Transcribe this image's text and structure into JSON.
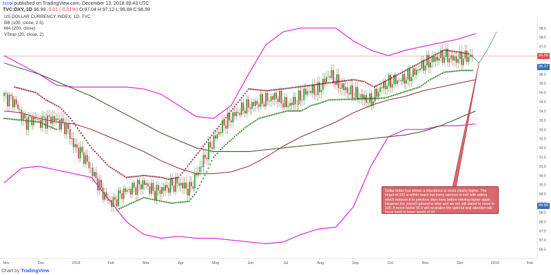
{
  "header": {
    "author": "fxcoi",
    "published_text": "published on TradingView.com, December 13, 2018 09:43 UTC",
    "symbol": "TVC:DXY, 1D",
    "last": "96.99",
    "change": "-0.01 (-0.01%)",
    "ohlc": "O:97.04 H:97.12 L:96.88 C:96.99"
  },
  "legend": {
    "title": "US DOLLAR CURRENCY INDEX, 1D, TVC",
    "bb": "BB (100, close, 2.5)",
    "ma": "MA (200, close)",
    "stop": "VStop (20, close, 2)"
  },
  "annotation": {
    "text": "Dollar Index has shown a reluctance to move clearly higher. The target of 100 is within reach but every upmove is met with selling which retraces it to previous days lows before moving higher again. However the overall uptrend is alive and we are still slated to move to 100. A move below 95.5 will neutralize the uptrend and attention will focus back to lower levels of 94"
  },
  "footer": {
    "chart_by": "Chart by",
    "brand": "TradingView"
  },
  "colors": {
    "bull": "#2e9e2e",
    "bear": "#c4464c",
    "bb": "#e020e0",
    "ma": "#2e4a1f",
    "basis": "#8b2a2a",
    "vstop_bull": "#1f7a1f",
    "vstop_bear": "#8b1a2a",
    "current_price_line": "#e05050",
    "axis_box_current": "#e05050",
    "axis_box_blue": "#3b6db7"
  },
  "price_boxes": {
    "current": "96.99",
    "blue1": "96.37",
    "blue2": "88.86"
  },
  "chart_data": {
    "type": "candlestick",
    "title": "US DOLLAR CURRENCY INDEX, 1D, TVC",
    "ylim": [
      86.0,
      99.2
    ],
    "y_ticks": [
      86.5,
      87.0,
      87.5,
      88.0,
      88.5,
      89.0,
      89.5,
      90.0,
      90.5,
      91.0,
      91.5,
      92.0,
      92.5,
      93.0,
      93.5,
      94.0,
      94.5,
      95.0,
      95.5,
      96.0,
      96.5,
      97.0,
      97.5,
      98.0,
      98.5
    ],
    "x_labels": [
      "Nov",
      "Dec",
      "2018",
      "Feb",
      "Mar",
      "Apr",
      "May",
      "Jun",
      "Jul",
      "Aug",
      "Sep",
      "Oct",
      "Nov",
      "Dec",
      "2019",
      "Feb"
    ],
    "x_label_months": [
      0,
      1,
      2,
      3,
      4,
      5,
      6,
      7,
      8,
      9,
      10,
      11,
      12,
      13,
      14,
      15
    ],
    "close_path": [
      [
        0.0,
        94.8
      ],
      [
        0.3,
        94.5
      ],
      [
        0.6,
        93.4
      ],
      [
        0.9,
        93.6
      ],
      [
        1.0,
        93.4
      ],
      [
        1.4,
        93.6
      ],
      [
        1.8,
        93.1
      ],
      [
        2.0,
        92.1
      ],
      [
        2.3,
        91.5
      ],
      [
        2.6,
        90.4
      ],
      [
        2.9,
        89.3
      ],
      [
        3.1,
        89.0
      ],
      [
        3.4,
        89.6
      ],
      [
        3.7,
        89.8
      ],
      [
        4.0,
        90.1
      ],
      [
        4.3,
        89.6
      ],
      [
        4.6,
        89.8
      ],
      [
        5.0,
        90.1
      ],
      [
        5.3,
        89.7
      ],
      [
        5.5,
        90.5
      ],
      [
        5.8,
        91.7
      ],
      [
        6.0,
        92.4
      ],
      [
        6.3,
        93.3
      ],
      [
        6.6,
        93.8
      ],
      [
        6.9,
        94.2
      ],
      [
        7.2,
        94.4
      ],
      [
        7.5,
        94.6
      ],
      [
        7.8,
        94.8
      ],
      [
        8.1,
        94.3
      ],
      [
        8.4,
        94.6
      ],
      [
        8.7,
        95.1
      ],
      [
        9.0,
        95.1
      ],
      [
        9.3,
        96.0
      ],
      [
        9.6,
        95.4
      ],
      [
        9.9,
        95.0
      ],
      [
        10.2,
        94.8
      ],
      [
        10.5,
        94.5
      ],
      [
        10.8,
        95.3
      ],
      [
        11.1,
        95.6
      ],
      [
        11.4,
        95.7
      ],
      [
        11.7,
        96.0
      ],
      [
        12.0,
        96.5
      ],
      [
        12.3,
        96.8
      ],
      [
        12.6,
        97.0
      ],
      [
        12.9,
        96.8
      ],
      [
        13.2,
        96.9
      ],
      [
        13.4,
        96.99
      ]
    ],
    "bb_upper": [
      [
        0.0,
        97.0
      ],
      [
        0.5,
        96.5
      ],
      [
        1.0,
        96.0
      ],
      [
        1.5,
        95.4
      ],
      [
        2.0,
        95.3
      ],
      [
        2.5,
        95.3
      ],
      [
        3.0,
        95.3
      ],
      [
        3.5,
        95.3
      ],
      [
        4.0,
        95.2
      ],
      [
        4.5,
        94.9
      ],
      [
        5.0,
        94.3
      ],
      [
        5.5,
        93.7
      ],
      [
        6.0,
        93.6
      ],
      [
        6.5,
        94.3
      ],
      [
        7.0,
        96.0
      ],
      [
        7.5,
        97.6
      ],
      [
        8.0,
        98.3
      ],
      [
        8.5,
        98.5
      ],
      [
        9.0,
        98.5
      ],
      [
        9.5,
        98.5
      ],
      [
        10.0,
        97.8
      ],
      [
        10.5,
        97.3
      ],
      [
        11.0,
        97.0
      ],
      [
        11.5,
        97.3
      ],
      [
        12.0,
        97.5
      ],
      [
        12.5,
        97.7
      ],
      [
        13.0,
        97.9
      ],
      [
        13.5,
        98.2
      ]
    ],
    "bb_lower": [
      [
        0.0,
        90.1
      ],
      [
        0.5,
        90.9
      ],
      [
        1.0,
        91.0
      ],
      [
        1.5,
        90.8
      ],
      [
        2.0,
        90.6
      ],
      [
        2.5,
        90.4
      ],
      [
        3.0,
        89.2
      ],
      [
        3.5,
        88.0
      ],
      [
        4.0,
        87.3
      ],
      [
        4.5,
        87.1
      ],
      [
        5.0,
        87.2
      ],
      [
        5.5,
        87.1
      ],
      [
        6.0,
        87.1
      ],
      [
        6.5,
        87.0
      ],
      [
        7.0,
        86.9
      ],
      [
        7.5,
        86.8
      ],
      [
        8.0,
        86.9
      ],
      [
        8.5,
        87.3
      ],
      [
        9.0,
        87.6
      ],
      [
        9.5,
        87.7
      ],
      [
        10.0,
        88.8
      ],
      [
        10.5,
        91.0
      ],
      [
        11.0,
        92.6
      ],
      [
        11.5,
        93.0
      ],
      [
        12.0,
        93.0
      ],
      [
        12.5,
        93.2
      ],
      [
        13.0,
        93.2
      ],
      [
        13.5,
        93.3
      ]
    ],
    "bb_basis": [
      [
        0.0,
        94.0
      ],
      [
        0.5,
        93.9
      ],
      [
        1.0,
        93.6
      ],
      [
        1.5,
        93.4
      ],
      [
        2.0,
        93.3
      ],
      [
        2.5,
        93.0
      ],
      [
        3.0,
        92.6
      ],
      [
        3.5,
        92.2
      ],
      [
        4.0,
        91.8
      ],
      [
        4.5,
        91.3
      ],
      [
        5.0,
        90.9
      ],
      [
        5.5,
        90.6
      ],
      [
        6.0,
        90.6
      ],
      [
        6.5,
        90.7
      ],
      [
        7.0,
        91.0
      ],
      [
        7.5,
        91.5
      ],
      [
        8.0,
        92.1
      ],
      [
        8.5,
        92.6
      ],
      [
        9.0,
        93.0
      ],
      [
        9.5,
        93.4
      ],
      [
        10.0,
        93.9
      ],
      [
        10.5,
        94.3
      ],
      [
        11.0,
        94.6
      ],
      [
        11.5,
        94.8
      ],
      [
        12.0,
        95.1
      ],
      [
        12.5,
        95.3
      ],
      [
        13.0,
        95.5
      ],
      [
        13.5,
        95.7
      ]
    ],
    "ma200": [
      [
        0.0,
        96.6
      ],
      [
        0.5,
        96.3
      ],
      [
        1.0,
        96.0
      ],
      [
        1.5,
        95.6
      ],
      [
        2.0,
        95.2
      ],
      [
        2.5,
        94.8
      ],
      [
        3.0,
        94.3
      ],
      [
        3.5,
        93.8
      ],
      [
        4.0,
        93.3
      ],
      [
        4.5,
        92.8
      ],
      [
        5.0,
        92.4
      ],
      [
        5.5,
        92.0
      ],
      [
        6.0,
        91.8
      ],
      [
        6.5,
        91.8
      ],
      [
        7.0,
        91.8
      ],
      [
        7.5,
        91.9
      ],
      [
        8.0,
        92.0
      ],
      [
        8.5,
        92.1
      ],
      [
        9.0,
        92.2
      ],
      [
        9.5,
        92.3
      ],
      [
        10.0,
        92.4
      ],
      [
        10.5,
        92.5
      ],
      [
        11.0,
        92.6
      ],
      [
        11.5,
        92.7
      ],
      [
        12.0,
        92.9
      ],
      [
        12.5,
        93.2
      ],
      [
        13.0,
        93.6
      ],
      [
        13.5,
        94.0
      ]
    ],
    "vstop_bull": [
      [
        0.0,
        93.6
      ],
      [
        1.0,
        93.4
      ],
      [
        1.5,
        93.0
      ],
      [
        3.3,
        88.7
      ],
      [
        4.0,
        89.3
      ],
      [
        4.8,
        89.0
      ],
      [
        5.3,
        89.1
      ],
      [
        5.5,
        89.6
      ],
      [
        5.8,
        90.7
      ],
      [
        6.0,
        91.5
      ],
      [
        6.3,
        92.1
      ],
      [
        6.6,
        92.6
      ],
      [
        6.9,
        93.1
      ],
      [
        7.3,
        93.6
      ],
      [
        8.1,
        94.0
      ],
      [
        8.5,
        94.0
      ],
      [
        8.8,
        94.3
      ],
      [
        9.0,
        94.4
      ],
      [
        9.3,
        94.6
      ],
      [
        10.9,
        94.7
      ],
      [
        11.4,
        95.0
      ],
      [
        11.9,
        95.3
      ],
      [
        12.2,
        95.7
      ],
      [
        12.6,
        96.1
      ],
      [
        13.1,
        96.2
      ],
      [
        13.4,
        96.2
      ]
    ],
    "vstop_bear": [
      [
        0.3,
        95.3
      ],
      [
        0.9,
        95.0
      ],
      [
        1.2,
        94.6
      ],
      [
        1.6,
        94.2
      ],
      [
        1.9,
        93.6
      ],
      [
        2.2,
        92.8
      ],
      [
        2.5,
        92.0
      ],
      [
        2.8,
        91.4
      ],
      [
        3.0,
        91.0
      ],
      [
        3.5,
        90.4
      ],
      [
        4.0,
        90.5
      ],
      [
        4.5,
        90.4
      ],
      [
        4.7,
        90.3
      ],
      [
        5.0,
        90.4
      ],
      [
        7.0,
        95.2
      ],
      [
        7.5,
        95.1
      ],
      [
        8.0,
        95.2
      ],
      [
        9.6,
        95.6
      ],
      [
        10.0,
        95.7
      ],
      [
        10.3,
        95.6
      ],
      [
        10.6,
        95.3
      ],
      [
        12.6,
        97.3
      ],
      [
        13.0,
        97.2
      ],
      [
        13.3,
        97.1
      ]
    ],
    "forecast_path": [
      [
        13.4,
        96.99
      ],
      [
        13.6,
        96.6
      ],
      [
        13.8,
        97.2
      ],
      [
        14.0,
        97.9
      ],
      [
        14.1,
        98.3
      ]
    ],
    "annotation_arrow": {
      "from": [
        12.8,
        89.0
      ],
      "to": [
        13.6,
        96.6
      ]
    }
  }
}
